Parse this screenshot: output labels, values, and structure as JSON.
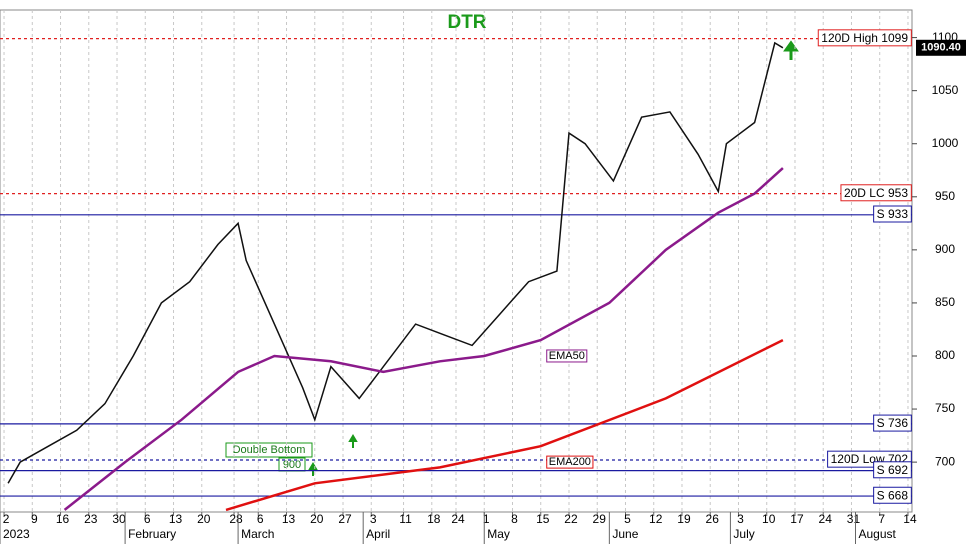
{
  "chart_data": {
    "type": "line",
    "title": "DTR",
    "xlim": [
      "2023-01-01",
      "2023-08-15"
    ],
    "ylim": [
      653,
      1126
    ],
    "yticks": [
      700,
      750,
      800,
      850,
      900,
      950,
      1000,
      1050,
      1100
    ],
    "grid": true,
    "xticks": [
      {
        "value": "2023-01-02",
        "label": "2"
      },
      {
        "value": "2023-01-09",
        "label": "9"
      },
      {
        "value": "2023-01-16",
        "label": "16"
      },
      {
        "value": "2023-01-23",
        "label": "23"
      },
      {
        "value": "2023-01-30",
        "label": "30"
      },
      {
        "value": "2023-02-06",
        "label": "6"
      },
      {
        "value": "2023-02-13",
        "label": "13"
      },
      {
        "value": "2023-02-20",
        "label": "20"
      },
      {
        "value": "2023-02-28",
        "label": "28"
      },
      {
        "value": "2023-03-06",
        "label": "6"
      },
      {
        "value": "2023-03-13",
        "label": "13"
      },
      {
        "value": "2023-03-20",
        "label": "20"
      },
      {
        "value": "2023-03-27",
        "label": "27"
      },
      {
        "value": "2023-04-03",
        "label": "3"
      },
      {
        "value": "2023-04-11",
        "label": "11"
      },
      {
        "value": "2023-04-18",
        "label": "18"
      },
      {
        "value": "2023-04-24",
        "label": "24"
      },
      {
        "value": "2023-05-01",
        "label": "1"
      },
      {
        "value": "2023-05-08",
        "label": "8"
      },
      {
        "value": "2023-05-15",
        "label": "15"
      },
      {
        "value": "2023-05-22",
        "label": "22"
      },
      {
        "value": "2023-05-29",
        "label": "29"
      },
      {
        "value": "2023-06-05",
        "label": "5"
      },
      {
        "value": "2023-06-12",
        "label": "12"
      },
      {
        "value": "2023-06-19",
        "label": "19"
      },
      {
        "value": "2023-06-26",
        "label": "26"
      },
      {
        "value": "2023-07-03",
        "label": "3"
      },
      {
        "value": "2023-07-10",
        "label": "10"
      },
      {
        "value": "2023-07-17",
        "label": "17"
      },
      {
        "value": "2023-07-24",
        "label": "24"
      },
      {
        "value": "2023-07-31",
        "label": "31"
      },
      {
        "value": "2023-08-07",
        "label": "7"
      },
      {
        "value": "2023-08-14",
        "label": "14"
      }
    ],
    "month_labels": [
      {
        "value": "2023-01-01",
        "label": "2023"
      },
      {
        "value": "2023-02-01",
        "label": "February"
      },
      {
        "value": "2023-03-01",
        "label": "March"
      },
      {
        "value": "2023-04-01",
        "label": "April"
      },
      {
        "value": "2023-05-01",
        "label": "May"
      },
      {
        "value": "2023-06-01",
        "label": "June"
      },
      {
        "value": "2023-07-01",
        "label": "July"
      },
      {
        "value": "2023-08-01",
        "label": "August"
      }
    ],
    "series": [
      {
        "name": "DTR",
        "color": "#111111",
        "x": [
          "2023-01-03",
          "2023-01-06",
          "2023-01-13",
          "2023-01-20",
          "2023-01-27",
          "2023-02-03",
          "2023-02-10",
          "2023-02-17",
          "2023-02-24",
          "2023-03-01",
          "2023-03-03",
          "2023-03-10",
          "2023-03-17",
          "2023-03-20",
          "2023-03-24",
          "2023-03-31",
          "2023-04-06",
          "2023-04-14",
          "2023-04-21",
          "2023-04-28",
          "2023-05-05",
          "2023-05-12",
          "2023-05-19",
          "2023-05-22",
          "2023-05-26",
          "2023-06-02",
          "2023-06-09",
          "2023-06-16",
          "2023-06-23",
          "2023-06-28",
          "2023-06-30",
          "2023-07-07",
          "2023-07-12",
          "2023-07-14"
        ],
        "values": [
          680,
          700,
          715,
          730,
          755,
          800,
          850,
          870,
          905,
          925,
          890,
          830,
          770,
          740,
          790,
          760,
          790,
          830,
          820,
          810,
          840,
          870,
          880,
          1010,
          1000,
          965,
          1025,
          1030,
          990,
          955,
          1000,
          1020,
          1095,
          1090.4
        ]
      },
      {
        "name": "EMA50",
        "color": "#8b1a8b",
        "x": [
          "2023-01-17",
          "2023-02-01",
          "2023-02-15",
          "2023-03-01",
          "2023-03-10",
          "2023-03-24",
          "2023-04-06",
          "2023-04-20",
          "2023-05-01",
          "2023-05-15",
          "2023-06-01",
          "2023-06-15",
          "2023-06-28",
          "2023-07-07",
          "2023-07-14"
        ],
        "values": [
          655,
          700,
          740,
          785,
          800,
          795,
          785,
          795,
          800,
          815,
          850,
          900,
          935,
          953,
          977
        ]
      },
      {
        "name": "EMA200",
        "color": "#e01010",
        "x": [
          "2023-02-26",
          "2023-03-20",
          "2023-04-20",
          "2023-05-15",
          "2023-06-15",
          "2023-07-14"
        ],
        "values": [
          655,
          680,
          695,
          715,
          760,
          815
        ]
      }
    ],
    "last_price": {
      "value": 1090.4,
      "label": "1090.40"
    },
    "levels": [
      {
        "label": "120D High 1099",
        "value": 1099,
        "color": "#e02020",
        "style": "dotted"
      },
      {
        "label": "20D LC 953",
        "value": 953,
        "color": "#e02020",
        "style": "dotted"
      },
      {
        "label": "S 933",
        "value": 933,
        "color": "#1a1aa0",
        "style": "solid"
      },
      {
        "label": "S 736",
        "value": 736,
        "color": "#1a1aa0",
        "style": "solid"
      },
      {
        "label": "120D Low 702",
        "value": 702,
        "color": "#1a1aa0",
        "style": "dotted"
      },
      {
        "label": "S 692",
        "value": 692,
        "color": "#1a1aa0",
        "style": "solid"
      },
      {
        "label": "S 668",
        "value": 668,
        "color": "#1a1aa0",
        "style": "solid"
      }
    ],
    "annotations": [
      "Double Bottom",
      "900"
    ]
  }
}
